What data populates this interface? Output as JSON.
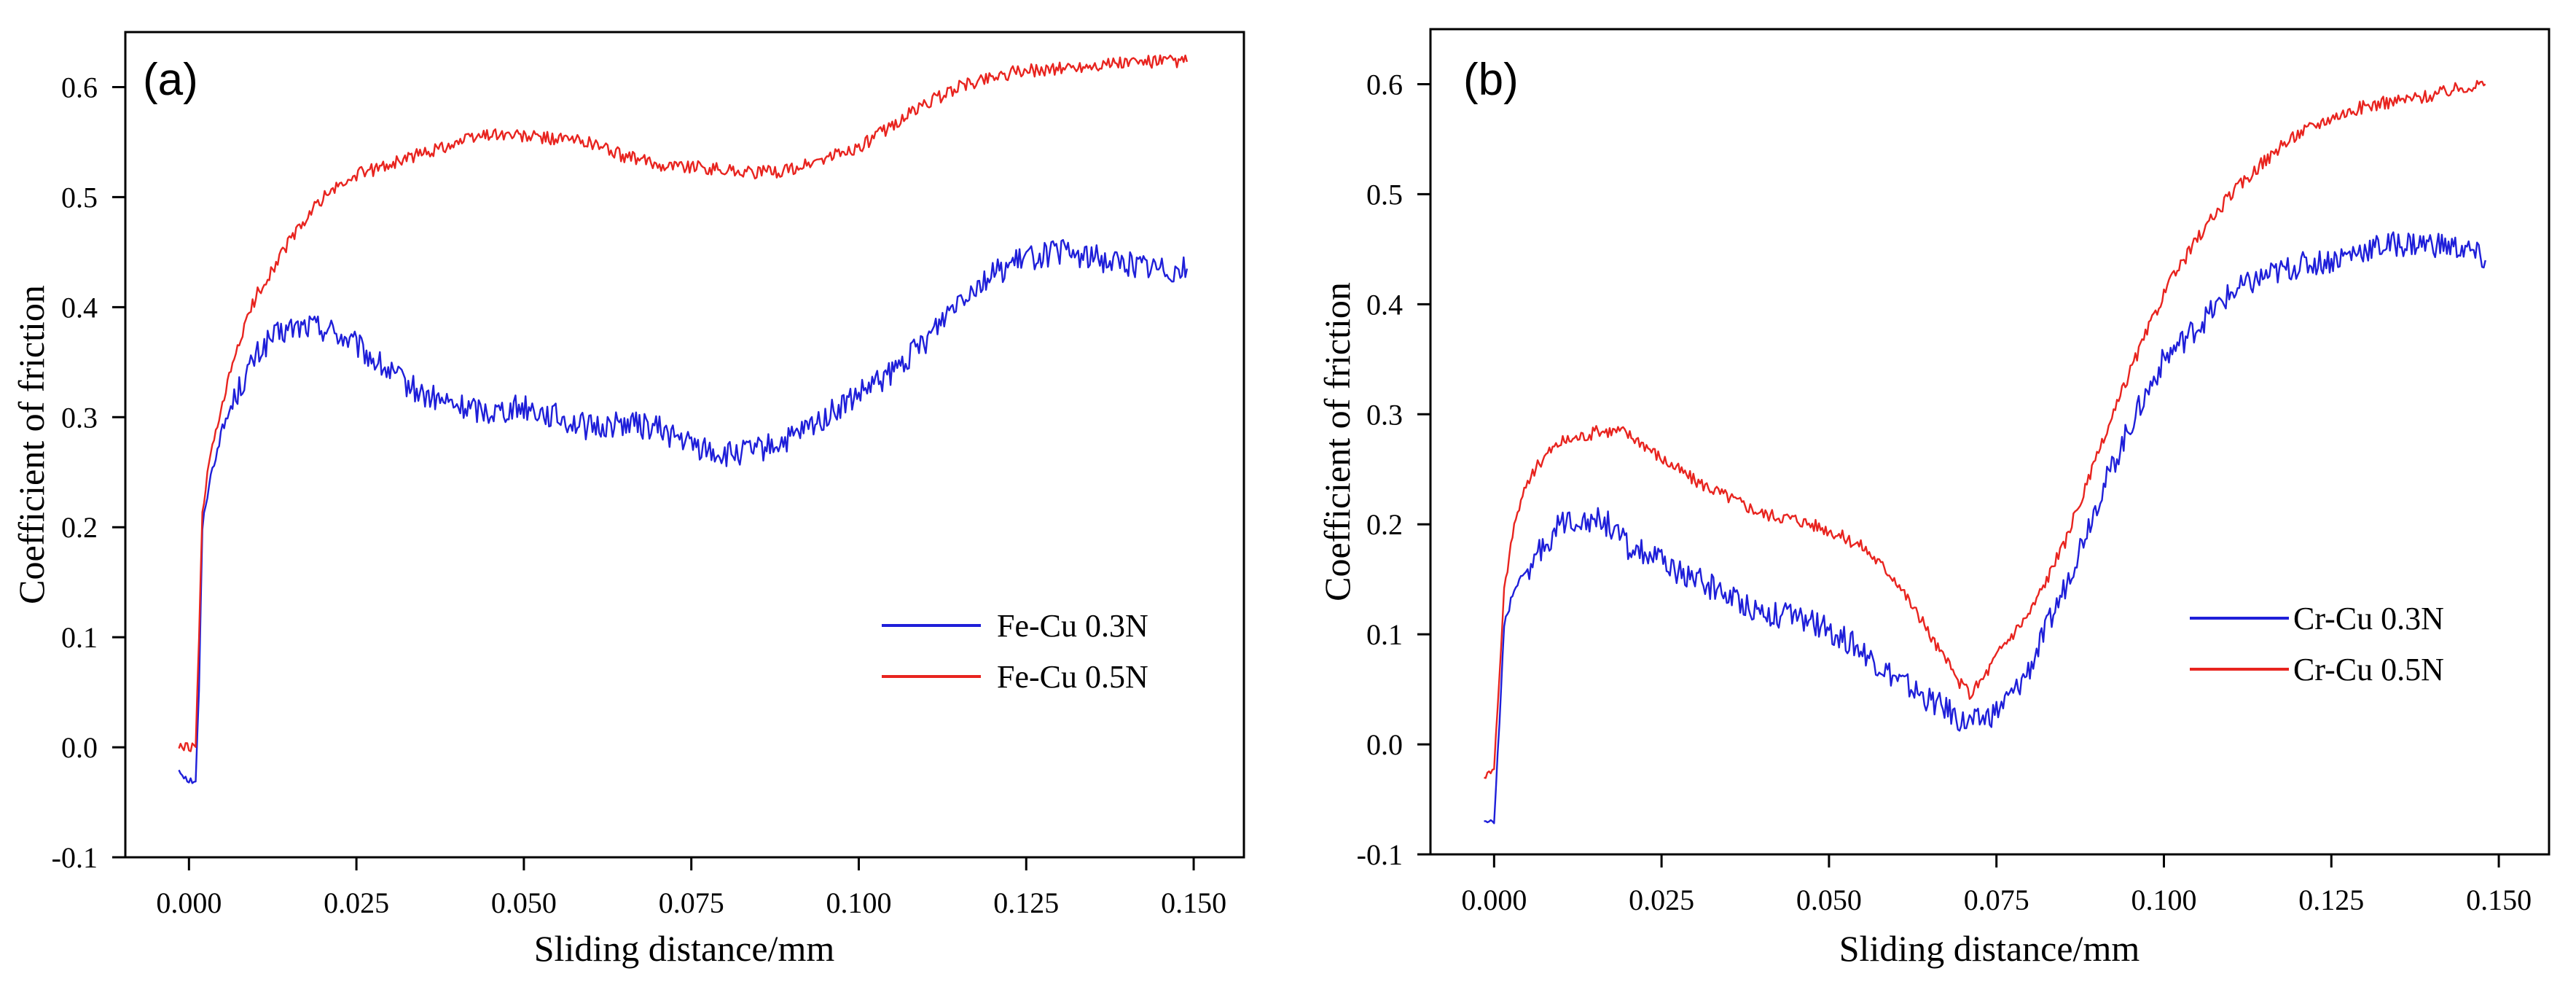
{
  "chart_data": [
    {
      "type": "line",
      "panel_label": "(a)",
      "xlabel": "Sliding distance/mm",
      "ylabel": "Coefficient of friction",
      "xlim": [
        -0.0095,
        0.1575
      ],
      "ylim": [
        -0.1,
        0.65
      ],
      "xticks": [
        0.0,
        0.025,
        0.05,
        0.075,
        0.1,
        0.125,
        0.15
      ],
      "xtick_labels": [
        "0.000",
        "0.025",
        "0.050",
        "0.075",
        "0.100",
        "0.125",
        "0.150"
      ],
      "yticks": [
        -0.1,
        0.0,
        0.1,
        0.2,
        0.3,
        0.4,
        0.5,
        0.6
      ],
      "ytick_labels": [
        "-0.1",
        "0.0",
        "0.1",
        "0.2",
        "0.3",
        "0.4",
        "0.5",
        "0.6"
      ],
      "legend_position": "center-right",
      "series": [
        {
          "name": "Fe-Cu 0.3N",
          "color": "#1f1fd9",
          "x": [
            -0.0015,
            0.0,
            0.001,
            0.0015,
            0.002,
            0.003,
            0.005,
            0.007,
            0.01,
            0.012,
            0.015,
            0.018,
            0.021,
            0.025,
            0.03,
            0.035,
            0.04,
            0.045,
            0.05,
            0.055,
            0.06,
            0.065,
            0.07,
            0.075,
            0.08,
            0.085,
            0.09,
            0.095,
            0.1,
            0.105,
            0.11,
            0.115,
            0.12,
            0.125,
            0.13,
            0.135,
            0.14,
            0.145,
            0.149
          ],
          "y": [
            -0.02,
            -0.03,
            -0.03,
            0.05,
            0.2,
            0.24,
            0.29,
            0.32,
            0.355,
            0.37,
            0.38,
            0.383,
            0.38,
            0.365,
            0.34,
            0.32,
            0.31,
            0.305,
            0.31,
            0.3,
            0.29,
            0.295,
            0.29,
            0.275,
            0.265,
            0.27,
            0.28,
            0.3,
            0.32,
            0.34,
            0.37,
            0.41,
            0.43,
            0.445,
            0.45,
            0.445,
            0.44,
            0.435,
            0.435
          ]
        },
        {
          "name": "Fe-Cu 0.5N",
          "color": "#e8241f",
          "x": [
            -0.0015,
            0.0,
            0.001,
            0.0015,
            0.002,
            0.003,
            0.005,
            0.007,
            0.01,
            0.015,
            0.02,
            0.025,
            0.03,
            0.035,
            0.04,
            0.045,
            0.05,
            0.055,
            0.06,
            0.065,
            0.07,
            0.075,
            0.08,
            0.085,
            0.09,
            0.095,
            0.1,
            0.105,
            0.11,
            0.115,
            0.12,
            0.125,
            0.13,
            0.135,
            0.14,
            0.145,
            0.149
          ],
          "y": [
            0.0,
            0.0,
            0.0,
            0.1,
            0.21,
            0.26,
            0.31,
            0.36,
            0.41,
            0.46,
            0.5,
            0.52,
            0.53,
            0.54,
            0.55,
            0.558,
            0.555,
            0.553,
            0.55,
            0.537,
            0.53,
            0.528,
            0.525,
            0.522,
            0.525,
            0.535,
            0.545,
            0.565,
            0.585,
            0.6,
            0.61,
            0.615,
            0.617,
            0.62,
            0.622,
            0.623,
            0.623
          ]
        }
      ]
    },
    {
      "type": "line",
      "panel_label": "(b)",
      "xlabel": "Sliding distance/mm",
      "ylabel": "Coefficient of friction",
      "xlim": [
        -0.0095,
        0.1575
      ],
      "ylim": [
        -0.1,
        0.65
      ],
      "xticks": [
        0.0,
        0.025,
        0.05,
        0.075,
        0.1,
        0.125,
        0.15
      ],
      "xtick_labels": [
        "0.000",
        "0.025",
        "0.050",
        "0.075",
        "0.100",
        "0.125",
        "0.150"
      ],
      "yticks": [
        -0.1,
        0.0,
        0.1,
        0.2,
        0.3,
        0.4,
        0.5,
        0.6
      ],
      "ytick_labels": [
        "-0.1",
        "0.0",
        "0.1",
        "0.2",
        "0.3",
        "0.4",
        "0.5",
        "0.6"
      ],
      "legend_position": "center-right",
      "series": [
        {
          "name": "Cr-Cu 0.3N",
          "color": "#1f1fd9",
          "x": [
            -0.0015,
            0.0,
            0.0008,
            0.0015,
            0.003,
            0.005,
            0.008,
            0.01,
            0.012,
            0.015,
            0.017,
            0.02,
            0.025,
            0.03,
            0.035,
            0.04,
            0.045,
            0.05,
            0.055,
            0.06,
            0.065,
            0.068,
            0.07,
            0.072,
            0.075,
            0.078,
            0.08,
            0.085,
            0.09,
            0.095,
            0.1,
            0.105,
            0.11,
            0.115,
            0.12,
            0.125,
            0.13,
            0.135,
            0.14,
            0.145,
            0.148
          ],
          "y": [
            -0.07,
            -0.07,
            0.02,
            0.11,
            0.14,
            0.16,
            0.185,
            0.2,
            0.205,
            0.205,
            0.2,
            0.18,
            0.165,
            0.15,
            0.135,
            0.12,
            0.115,
            0.105,
            0.085,
            0.06,
            0.04,
            0.03,
            0.02,
            0.02,
            0.03,
            0.05,
            0.07,
            0.14,
            0.22,
            0.29,
            0.35,
            0.38,
            0.41,
            0.425,
            0.435,
            0.44,
            0.45,
            0.455,
            0.455,
            0.45,
            0.44
          ]
        },
        {
          "name": "Cr-Cu 0.5N",
          "color": "#e8241f",
          "x": [
            -0.0015,
            0.0,
            0.0008,
            0.0015,
            0.003,
            0.005,
            0.008,
            0.01,
            0.013,
            0.016,
            0.019,
            0.022,
            0.025,
            0.03,
            0.035,
            0.04,
            0.045,
            0.05,
            0.055,
            0.06,
            0.063,
            0.066,
            0.069,
            0.071,
            0.073,
            0.076,
            0.08,
            0.085,
            0.09,
            0.095,
            0.1,
            0.105,
            0.11,
            0.115,
            0.12,
            0.125,
            0.13,
            0.135,
            0.14,
            0.145,
            0.148
          ],
          "y": [
            -0.03,
            -0.02,
            0.06,
            0.14,
            0.2,
            0.24,
            0.265,
            0.275,
            0.28,
            0.285,
            0.285,
            0.275,
            0.26,
            0.24,
            0.225,
            0.21,
            0.205,
            0.195,
            0.18,
            0.15,
            0.12,
            0.09,
            0.06,
            0.045,
            0.06,
            0.09,
            0.12,
            0.18,
            0.26,
            0.34,
            0.41,
            0.46,
            0.5,
            0.53,
            0.555,
            0.57,
            0.58,
            0.585,
            0.59,
            0.598,
            0.6
          ]
        }
      ]
    }
  ]
}
